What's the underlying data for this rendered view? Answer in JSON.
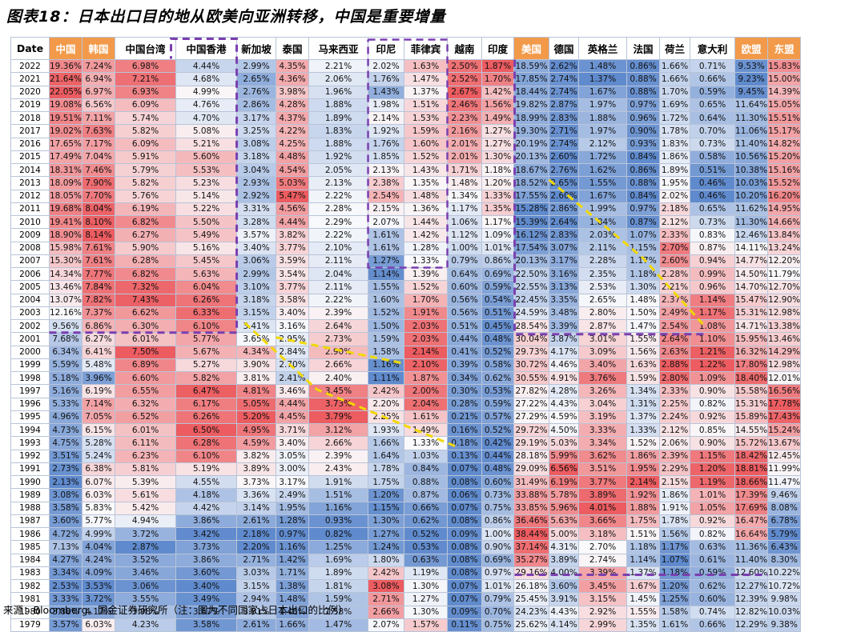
{
  "title": "图表18：日本出口目的地从欧美向亚洲转移，中国是重要增量",
  "source": "来源：Bloomberg，国金证券研究所（注：图为不同国家占日本出口的比例）",
  "colors": {
    "accent_header": "#f29a4a",
    "dash_purple": "#7a3fb0",
    "dash_yellow": "#f2d800"
  },
  "chart_data": {
    "type": "table",
    "title": "图表18：日本出口目的地从欧美向亚洲转移，中国是重要增量",
    "row_label_header": "Date",
    "columns": [
      "中国",
      "韩国",
      "中国台湾",
      "中国香港",
      "新加坡",
      "泰国",
      "马来西亚",
      "印尼",
      "菲律宾",
      "越南",
      "印度",
      "美国",
      "德国",
      "英格兰",
      "法国",
      "荷兰",
      "意大利",
      "欧盟",
      "东盟"
    ],
    "highlighted_columns": [
      "中国",
      "韩国",
      "美国",
      "欧盟",
      "东盟"
    ],
    "unit": "%",
    "rows": [
      {
        "year": "2022",
        "values": [
          19.36,
          7.24,
          6.98,
          4.44,
          2.99,
          4.35,
          2.21,
          2.02,
          1.63,
          2.5,
          1.87,
          18.59,
          2.62,
          1.48,
          0.86,
          1.66,
          0.71,
          9.53,
          15.83
        ]
      },
      {
        "year": "2021",
        "values": [
          21.64,
          6.94,
          7.21,
          4.68,
          2.65,
          4.36,
          2.06,
          1.76,
          1.47,
          2.52,
          1.7,
          17.85,
          2.74,
          1.37,
          0.88,
          1.66,
          0.66,
          9.23,
          15.0
        ]
      },
      {
        "year": "2020",
        "values": [
          22.05,
          6.97,
          6.93,
          4.99,
          2.76,
          3.98,
          1.96,
          1.43,
          1.37,
          2.67,
          1.42,
          18.44,
          2.74,
          1.67,
          0.88,
          1.7,
          0.59,
          9.45,
          14.39
        ]
      },
      {
        "year": "2019",
        "values": [
          19.08,
          6.56,
          6.09,
          4.76,
          2.86,
          4.28,
          1.88,
          1.98,
          1.51,
          2.46,
          1.56,
          19.82,
          2.87,
          1.97,
          0.97,
          1.69,
          0.65,
          11.64,
          15.05
        ]
      },
      {
        "year": "2018",
        "values": [
          19.51,
          7.11,
          5.74,
          4.7,
          3.17,
          4.37,
          1.89,
          2.14,
          1.53,
          2.23,
          1.49,
          18.99,
          2.83,
          1.88,
          0.96,
          1.72,
          0.64,
          11.3,
          15.51
        ]
      },
      {
        "year": "2017",
        "values": [
          19.02,
          7.63,
          5.82,
          5.08,
          3.25,
          4.22,
          1.83,
          1.92,
          1.59,
          2.16,
          1.27,
          19.3,
          2.71,
          1.97,
          0.9,
          1.78,
          0.7,
          11.06,
          15.17
        ]
      },
      {
        "year": "2016",
        "values": [
          17.65,
          7.17,
          6.09,
          5.21,
          3.08,
          4.25,
          1.88,
          1.76,
          1.6,
          2.01,
          1.27,
          20.19,
          2.74,
          2.12,
          0.93,
          1.83,
          0.73,
          11.4,
          14.82
        ]
      },
      {
        "year": "2015",
        "values": [
          17.49,
          7.04,
          5.91,
          5.6,
          3.18,
          4.48,
          1.92,
          1.85,
          1.52,
          2.01,
          1.3,
          20.13,
          2.6,
          1.72,
          0.84,
          1.86,
          0.58,
          10.56,
          15.2
        ]
      },
      {
        "year": "2014",
        "values": [
          18.31,
          7.46,
          5.79,
          5.53,
          3.04,
          4.54,
          2.05,
          2.13,
          1.43,
          1.71,
          1.18,
          18.67,
          2.76,
          1.62,
          0.86,
          1.89,
          0.51,
          10.38,
          15.16
        ]
      },
      {
        "year": "2013",
        "values": [
          18.09,
          7.9,
          5.82,
          5.23,
          2.93,
          5.03,
          2.13,
          2.38,
          1.35,
          1.48,
          1.2,
          18.52,
          2.65,
          1.55,
          0.88,
          1.95,
          0.46,
          10.03,
          15.52
        ]
      },
      {
        "year": "2012",
        "values": [
          18.05,
          7.7,
          5.76,
          5.14,
          2.92,
          5.47,
          2.22,
          2.54,
          1.48,
          1.34,
          1.33,
          17.55,
          2.6,
          1.67,
          0.84,
          2.02,
          0.46,
          10.2,
          16.2
        ]
      },
      {
        "year": "2011",
        "values": [
          19.68,
          8.04,
          6.19,
          5.22,
          3.31,
          4.56,
          2.28,
          2.15,
          1.36,
          1.17,
          1.35,
          15.28,
          2.86,
          1.99,
          0.97,
          2.18,
          0.65,
          11.62,
          14.95
        ]
      },
      {
        "year": "2010",
        "values": [
          19.41,
          8.1,
          6.82,
          5.5,
          3.28,
          4.44,
          2.29,
          2.07,
          1.44,
          1.06,
          1.17,
          15.39,
          2.64,
          1.84,
          0.87,
          2.12,
          0.73,
          11.3,
          14.66
        ]
      },
      {
        "year": "2009",
        "values": [
          18.9,
          8.14,
          6.27,
          5.49,
          3.57,
          3.82,
          2.22,
          1.61,
          1.42,
          1.12,
          1.09,
          16.12,
          2.83,
          2.03,
          1.07,
          2.33,
          0.83,
          12.46,
          13.84
        ]
      },
      {
        "year": "2008",
        "values": [
          15.98,
          7.61,
          5.9,
          5.16,
          3.4,
          3.77,
          2.1,
          1.61,
          1.28,
          1.0,
          1.01,
          17.54,
          3.07,
          2.11,
          1.15,
          2.7,
          0.87,
          14.11,
          13.24
        ]
      },
      {
        "year": "2007",
        "values": [
          15.3,
          7.61,
          6.28,
          5.45,
          3.06,
          3.59,
          2.11,
          1.27,
          1.33,
          0.79,
          0.86,
          20.13,
          3.17,
          2.28,
          1.17,
          2.6,
          0.94,
          14.77,
          12.2
        ]
      },
      {
        "year": "2006",
        "values": [
          14.34,
          7.77,
          6.82,
          5.63,
          2.99,
          3.54,
          2.04,
          1.14,
          1.39,
          0.64,
          0.69,
          22.5,
          3.16,
          2.35,
          1.18,
          2.28,
          0.99,
          14.5,
          11.79
        ]
      },
      {
        "year": "2005",
        "values": [
          13.46,
          7.84,
          7.32,
          6.04,
          3.1,
          3.77,
          2.11,
          1.55,
          1.52,
          0.6,
          0.59,
          22.55,
          3.13,
          2.53,
          1.3,
          2.21,
          0.96,
          14.7,
          12.7
        ]
      },
      {
        "year": "2004",
        "values": [
          13.07,
          7.82,
          7.43,
          6.26,
          3.18,
          3.58,
          2.22,
          1.6,
          1.7,
          0.56,
          0.54,
          22.45,
          3.35,
          2.65,
          1.48,
          2.37,
          1.14,
          15.47,
          12.9
        ]
      },
      {
        "year": "2003",
        "values": [
          12.16,
          7.37,
          6.62,
          6.33,
          3.15,
          3.4,
          2.39,
          1.52,
          1.91,
          0.56,
          0.51,
          24.59,
          3.48,
          2.8,
          1.5,
          2.49,
          1.17,
          15.31,
          12.98
        ]
      },
      {
        "year": "2002",
        "values": [
          9.56,
          6.86,
          6.3,
          6.1,
          3.41,
          3.16,
          2.64,
          1.5,
          2.03,
          0.51,
          0.45,
          28.54,
          3.39,
          2.87,
          1.47,
          2.54,
          1.08,
          14.71,
          13.38
        ]
      },
      {
        "year": "2001",
        "values": [
          7.68,
          6.27,
          6.01,
          5.77,
          3.65,
          2.95,
          2.73,
          1.59,
          2.03,
          0.44,
          0.48,
          30.04,
          3.87,
          3.01,
          1.55,
          2.64,
          1.1,
          15.95,
          13.46
        ]
      },
      {
        "year": "2000",
        "values": [
          6.34,
          6.41,
          7.5,
          5.67,
          4.34,
          2.84,
          2.9,
          1.58,
          2.14,
          0.41,
          0.52,
          29.73,
          4.17,
          3.09,
          1.56,
          2.63,
          1.21,
          16.32,
          14.29
        ]
      },
      {
        "year": "1999",
        "values": [
          5.59,
          5.48,
          6.89,
          5.27,
          3.9,
          2.7,
          2.66,
          1.16,
          2.1,
          0.39,
          0.58,
          30.72,
          4.46,
          3.4,
          1.63,
          2.88,
          1.22,
          17.8,
          12.98
        ]
      },
      {
        "year": "1998",
        "values": [
          5.18,
          3.96,
          6.6,
          5.82,
          3.81,
          2.41,
          2.4,
          1.11,
          1.87,
          0.34,
          0.62,
          30.55,
          4.91,
          3.76,
          1.59,
          2.8,
          1.09,
          18.4,
          12.01
        ]
      },
      {
        "year": "1997",
        "values": [
          5.16,
          6.19,
          6.55,
          6.47,
          4.81,
          3.46,
          3.45,
          2.42,
          2.0,
          0.3,
          0.53,
          27.82,
          4.28,
          3.26,
          1.34,
          2.33,
          0.9,
          15.58,
          16.56
        ]
      },
      {
        "year": "1996",
        "values": [
          5.33,
          7.14,
          6.32,
          6.17,
          5.05,
          4.44,
          3.73,
          2.2,
          2.04,
          0.28,
          0.59,
          27.22,
          4.43,
          3.04,
          1.31,
          2.25,
          0.82,
          15.31,
          17.78
        ]
      },
      {
        "year": "1995",
        "values": [
          4.96,
          7.05,
          6.52,
          6.26,
          5.2,
          4.45,
          3.79,
          2.25,
          1.61,
          0.21,
          0.57,
          27.29,
          4.59,
          3.19,
          1.37,
          2.24,
          0.92,
          15.89,
          17.43
        ]
      },
      {
        "year": "1994",
        "values": [
          4.73,
          6.15,
          6.01,
          6.5,
          4.95,
          3.71,
          3.12,
          1.93,
          1.49,
          0.16,
          0.52,
          29.72,
          4.5,
          3.33,
          1.33,
          2.12,
          0.85,
          14.55,
          15.24
        ]
      },
      {
        "year": "1993",
        "values": [
          4.75,
          5.28,
          6.11,
          6.28,
          4.59,
          3.4,
          2.66,
          1.66,
          1.33,
          0.18,
          0.42,
          29.19,
          5.03,
          3.34,
          1.52,
          2.06,
          0.9,
          15.72,
          13.67
        ]
      },
      {
        "year": "1992",
        "values": [
          3.51,
          5.24,
          6.23,
          6.1,
          3.82,
          3.05,
          2.39,
          1.64,
          1.03,
          0.13,
          0.44,
          28.18,
          5.99,
          3.62,
          1.86,
          2.39,
          1.15,
          18.42,
          12.45
        ]
      },
      {
        "year": "1991",
        "values": [
          2.73,
          6.38,
          5.81,
          5.19,
          3.89,
          3.0,
          2.43,
          1.78,
          0.84,
          0.07,
          0.48,
          29.09,
          6.56,
          3.51,
          1.95,
          2.29,
          1.2,
          18.81,
          11.99
        ]
      },
      {
        "year": "1990",
        "values": [
          2.13,
          6.07,
          5.39,
          4.55,
          3.73,
          3.17,
          1.91,
          1.75,
          0.88,
          0.08,
          0.6,
          31.49,
          6.19,
          3.77,
          2.14,
          2.15,
          1.19,
          18.66,
          11.47
        ]
      },
      {
        "year": "1989",
        "values": [
          3.08,
          6.03,
          5.61,
          4.18,
          3.36,
          2.49,
          1.51,
          1.2,
          0.87,
          0.06,
          0.73,
          33.88,
          5.78,
          3.89,
          1.92,
          1.86,
          1.01,
          17.39,
          9.46
        ]
      },
      {
        "year": "1988",
        "values": [
          3.58,
          5.83,
          5.42,
          4.42,
          3.14,
          1.95,
          1.16,
          1.15,
          0.66,
          0.07,
          0.75,
          33.85,
          5.96,
          4.01,
          1.88,
          1.91,
          1.05,
          17.69,
          8.08
        ]
      },
      {
        "year": "1987",
        "values": [
          3.6,
          5.77,
          4.94,
          3.86,
          2.61,
          1.28,
          0.93,
          1.3,
          0.62,
          0.08,
          0.86,
          36.46,
          5.63,
          3.66,
          1.75,
          1.78,
          0.92,
          16.47,
          6.78
        ]
      },
      {
        "year": "1986",
        "values": [
          4.72,
          4.99,
          3.72,
          3.42,
          2.18,
          0.97,
          0.82,
          1.27,
          0.52,
          0.09,
          1.0,
          38.44,
          5.0,
          3.18,
          1.51,
          1.56,
          0.82,
          16.64,
          5.79
        ]
      },
      {
        "year": "1985",
        "values": [
          7.13,
          4.04,
          2.87,
          3.73,
          2.2,
          1.16,
          1.25,
          1.24,
          0.53,
          0.08,
          0.9,
          37.14,
          4.31,
          2.7,
          1.18,
          1.17,
          0.63,
          11.36,
          6.43
        ]
      },
      {
        "year": "1984",
        "values": [
          4.27,
          4.24,
          3.52,
          3.86,
          2.71,
          1.42,
          1.69,
          1.8,
          0.63,
          0.08,
          0.69,
          35.27,
          3.89,
          2.74,
          1.14,
          1.07,
          0.61,
          11.4,
          8.3
        ]
      },
      {
        "year": "1983",
        "values": [
          3.34,
          4.09,
          3.46,
          3.6,
          3.03,
          1.71,
          1.89,
          2.42,
          1.19,
          0.08,
          0.97,
          29.16,
          4.0,
          3.39,
          1.37,
          1.18,
          0.59,
          12.6,
          10.22
        ]
      },
      {
        "year": "1982",
        "values": [
          2.53,
          3.53,
          3.06,
          3.4,
          3.15,
          1.38,
          1.81,
          3.08,
          1.3,
          0.07,
          1.01,
          26.18,
          3.6,
          3.45,
          1.67,
          1.2,
          0.62,
          12.27,
          10.72
        ]
      },
      {
        "year": "1981",
        "values": [
          3.33,
          3.72,
          3.55,
          3.49,
          2.94,
          1.48,
          1.59,
          2.71,
          1.27,
          0.07,
          0.79,
          25.45,
          3.91,
          3.15,
          1.45,
          1.25,
          0.6,
          12.39,
          9.98
        ]
      },
      {
        "year": "1980",
        "values": [
          3.88,
          4.17,
          3.98,
          3.67,
          3.01,
          1.48,
          1.58,
          2.66,
          1.3,
          0.09,
          0.7,
          24.23,
          4.43,
          2.92,
          1.55,
          1.58,
          0.74,
          12.82,
          10.03
        ]
      },
      {
        "year": "1979",
        "values": [
          3.57,
          6.03,
          4.23,
          3.58,
          2.61,
          1.66,
          1.47,
          2.07,
          1.57,
          0.11,
          0.75,
          25.62,
          4.14,
          2.99,
          1.35,
          1.61,
          0.66,
          12.29,
          9.38
        ]
      }
    ]
  }
}
